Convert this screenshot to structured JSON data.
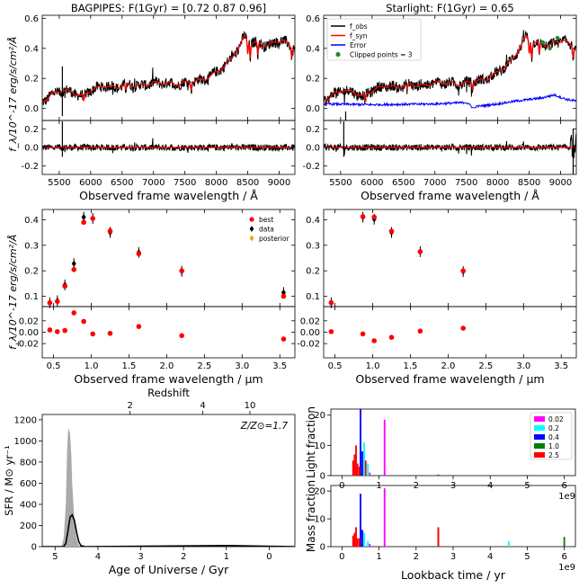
{
  "chart_data": [
    {
      "type": "line",
      "id": "bagpipes_spec",
      "title": "BAGPIPES: F(1Gyr) = [0.72 0.87 0.96]",
      "ylabel": "f_λ/10^-17 erg/s/cm²/Å",
      "xlabel": "Observed frame wavelength / Å",
      "xlim": [
        5230,
        9250
      ],
      "ylim": [
        -0.08,
        0.62
      ],
      "xticks": [
        5500,
        6000,
        6500,
        7000,
        7500,
        8000,
        8500,
        9000
      ],
      "yticks": [
        0.0,
        0.2,
        0.4,
        0.6
      ],
      "series": [
        {
          "name": "f_obs",
          "color": "#000000",
          "x": [
            5250,
            5400,
            5550,
            5700,
            5850,
            6000,
            6200,
            6400,
            6600,
            6800,
            7000,
            7200,
            7400,
            7600,
            7800,
            8000,
            8200,
            8350,
            8450,
            8550,
            8650,
            8750,
            8900,
            9050,
            9200
          ],
          "y": [
            0.05,
            0.1,
            0.12,
            0.11,
            0.08,
            0.12,
            0.15,
            0.14,
            0.16,
            0.15,
            0.17,
            0.17,
            0.16,
            0.18,
            0.19,
            0.24,
            0.31,
            0.4,
            0.48,
            0.44,
            0.44,
            0.42,
            0.43,
            0.46,
            0.4
          ]
        },
        {
          "name": "f_syn",
          "color": "#ff0000",
          "x": [
            5250,
            5400,
            5550,
            5700,
            5850,
            6000,
            6200,
            6400,
            6600,
            6800,
            7000,
            7200,
            7400,
            7600,
            7800,
            8000,
            8200,
            8350,
            8450,
            8550,
            8650,
            8750,
            8900,
            9050,
            9200
          ],
          "y": [
            0.05,
            0.1,
            0.12,
            0.11,
            0.08,
            0.12,
            0.15,
            0.14,
            0.16,
            0.15,
            0.17,
            0.17,
            0.16,
            0.18,
            0.19,
            0.24,
            0.31,
            0.4,
            0.48,
            0.44,
            0.44,
            0.42,
            0.43,
            0.46,
            0.4
          ]
        }
      ]
    },
    {
      "type": "line",
      "id": "bagpipes_resid",
      "xlim": [
        5230,
        9250
      ],
      "ylim": [
        -0.29,
        0.29
      ],
      "yticks": [
        -0.2,
        0.0,
        0.2
      ],
      "series": [
        {
          "name": "residual",
          "color": "#000000",
          "x": [
            5250,
            9250
          ],
          "y": [
            0,
            0
          ]
        },
        {
          "name": "zero",
          "color": "#ff0000",
          "x": [
            5250,
            9250
          ],
          "y": [
            0,
            0
          ]
        }
      ]
    },
    {
      "type": "line",
      "id": "starlight_spec",
      "title": "Starlight: F(1Gyr) = 0.65",
      "xlabel": "Observed frame wavelength / Å",
      "xlim": [
        5230,
        9250
      ],
      "ylim": [
        -0.08,
        0.62
      ],
      "xticks": [
        5500,
        6000,
        6500,
        7000,
        7500,
        8000,
        8500,
        9000
      ],
      "yticks": [
        0.0,
        0.2,
        0.4,
        0.6
      ],
      "legend": {
        "placement": "top-left",
        "entries": [
          {
            "label": "f_obs",
            "color": "#000000",
            "marker": "line"
          },
          {
            "label": "f_syn",
            "color": "#ff0000",
            "marker": "line"
          },
          {
            "label": "Error",
            "color": "#0000ff",
            "marker": "line"
          },
          {
            "label": "Clipped points = 3",
            "color": "#228b22",
            "marker": "dot"
          }
        ]
      },
      "series": [
        {
          "name": "f_obs",
          "color": "#000000",
          "x": [
            5250,
            5400,
            5550,
            5700,
            5850,
            6000,
            6200,
            6400,
            6600,
            6800,
            7000,
            7200,
            7400,
            7600,
            7800,
            8000,
            8200,
            8350,
            8450,
            8550,
            8650,
            8750,
            8900,
            9050,
            9200
          ],
          "y": [
            0.05,
            0.1,
            0.12,
            0.11,
            0.08,
            0.12,
            0.15,
            0.14,
            0.16,
            0.15,
            0.17,
            0.17,
            0.16,
            0.18,
            0.19,
            0.24,
            0.31,
            0.4,
            0.48,
            0.44,
            0.44,
            0.42,
            0.43,
            0.46,
            0.4
          ]
        },
        {
          "name": "f_syn",
          "color": "#ff0000",
          "x": [
            5250,
            5400,
            5550,
            5700,
            5850,
            6000,
            6200,
            6400,
            6600,
            6800,
            7000,
            7200,
            7400,
            7600,
            7800,
            8000,
            8200,
            8350,
            8450,
            8550,
            8650,
            8750,
            8900,
            9050,
            9200
          ],
          "y": [
            0.05,
            0.1,
            0.12,
            0.11,
            0.08,
            0.12,
            0.15,
            0.14,
            0.16,
            0.15,
            0.17,
            0.17,
            0.16,
            0.18,
            0.19,
            0.24,
            0.31,
            0.4,
            0.48,
            0.44,
            0.44,
            0.42,
            0.43,
            0.46,
            0.4
          ]
        },
        {
          "name": "Error",
          "color": "#0000ff",
          "x": [
            5250,
            6000,
            7000,
            7500,
            7600,
            8000,
            8300,
            8500,
            8700,
            8900,
            9100,
            9250
          ],
          "y": [
            0.03,
            0.025,
            0.03,
            0.04,
            0.01,
            0.03,
            0.05,
            0.06,
            0.07,
            0.09,
            0.06,
            0.05
          ]
        },
        {
          "name": "clipped",
          "color": "#228b22",
          "x": [
            8720,
            8830,
            8950
          ],
          "y": [
            0.44,
            0.4,
            0.47
          ]
        }
      ]
    },
    {
      "type": "line",
      "id": "starlight_resid",
      "xlim": [
        5230,
        9250
      ],
      "ylim": [
        -0.29,
        0.29
      ],
      "yticks": [
        -0.2,
        0.0,
        0.2
      ],
      "series": [
        {
          "name": "residual",
          "color": "#000000",
          "x": [
            5250,
            9250
          ],
          "y": [
            0,
            0
          ]
        },
        {
          "name": "zero",
          "color": "#ff0000",
          "x": [
            5250,
            9250
          ],
          "y": [
            0,
            0
          ]
        }
      ]
    },
    {
      "type": "scatter",
      "id": "bagpipes_phot",
      "ylabel": "f_λ/10^-17 erg/s/cm²/Å",
      "xlim": [
        0.35,
        3.7
      ],
      "ylim": [
        0.06,
        0.44
      ],
      "yticks": [
        0.1,
        0.2,
        0.3,
        0.4
      ],
      "legend": {
        "placement": "top-right",
        "entries": [
          {
            "label": "best",
            "color": "#ff0000",
            "marker": "dot"
          },
          {
            "label": "data",
            "color": "#000000",
            "marker": "diamond"
          },
          {
            "label": "posterior",
            "color": "#ff9900",
            "marker": "diamond"
          }
        ]
      },
      "series": [
        {
          "name": "posterior",
          "color": "#ff9900",
          "x": [
            0.45,
            0.55,
            0.65,
            0.77,
            0.9,
            1.02,
            1.25,
            1.63,
            2.2,
            3.55
          ],
          "y": [
            0.075,
            0.083,
            0.145,
            0.205,
            0.41,
            0.405,
            0.36,
            0.272,
            0.202,
            0.108
          ]
        },
        {
          "name": "data",
          "color": "#000000",
          "x": [
            0.45,
            0.55,
            0.65,
            0.77,
            0.9,
            1.02,
            1.25,
            1.63,
            2.2,
            3.55
          ],
          "y": [
            0.075,
            0.083,
            0.145,
            0.228,
            0.41,
            0.405,
            0.35,
            0.272,
            0.198,
            0.115
          ]
        },
        {
          "name": "best",
          "color": "#ff0000",
          "x": [
            0.45,
            0.55,
            0.65,
            0.77,
            0.9,
            1.02,
            1.25,
            1.63,
            2.2,
            3.55
          ],
          "y": [
            0.075,
            0.08,
            0.14,
            0.205,
            0.39,
            0.405,
            0.355,
            0.267,
            0.2,
            0.1
          ]
        }
      ]
    },
    {
      "type": "scatter",
      "id": "bagpipes_phot_resid",
      "xlabel": "Observed frame wavelength / μm",
      "xlim": [
        0.35,
        3.7
      ],
      "ylim": [
        -0.045,
        0.045
      ],
      "xticks": [
        0.5,
        1.0,
        1.5,
        2.0,
        2.5,
        3.0,
        3.5
      ],
      "yticks": [
        -0.02,
        0.0,
        0.02
      ],
      "series": [
        {
          "name": "best",
          "color": "#ff0000",
          "x": [
            0.45,
            0.55,
            0.65,
            0.77,
            0.9,
            1.02,
            1.25,
            1.63,
            2.2,
            3.55
          ],
          "y": [
            0.004,
            0.001,
            0.003,
            0.034,
            0.019,
            -0.003,
            -0.002,
            0.01,
            -0.006,
            -0.012
          ]
        }
      ]
    },
    {
      "type": "scatter",
      "id": "starlight_phot",
      "xlim": [
        0.35,
        3.7
      ],
      "ylim": [
        0.06,
        0.44
      ],
      "yticks": [
        0.1,
        0.2,
        0.3,
        0.4
      ],
      "series": [
        {
          "name": "data",
          "color": "#000000",
          "x": [
            0.45,
            0.87,
            1.02,
            1.25,
            1.63,
            2.2
          ],
          "y": [
            0.075,
            0.41,
            0.402,
            0.35,
            0.275,
            0.197
          ]
        },
        {
          "name": "best",
          "color": "#ff0000",
          "x": [
            0.45,
            0.87,
            1.02,
            1.25,
            1.63,
            2.2
          ],
          "y": [
            0.075,
            0.412,
            0.41,
            0.355,
            0.275,
            0.2
          ]
        }
      ]
    },
    {
      "type": "scatter",
      "id": "starlight_phot_resid",
      "xlabel": "Observed frame wavelength / μm",
      "xlim": [
        0.35,
        3.7
      ],
      "ylim": [
        -0.045,
        0.045
      ],
      "xticks": [
        0.5,
        1.0,
        1.5,
        2.0,
        2.5,
        3.0,
        3.5
      ],
      "yticks": [
        -0.02,
        0.0,
        0.02
      ],
      "series": [
        {
          "name": "best",
          "color": "#ff0000",
          "x": [
            0.45,
            0.87,
            1.02,
            1.25,
            1.63,
            2.2
          ],
          "y": [
            0.001,
            -0.003,
            -0.015,
            -0.009,
            0.002,
            0.007
          ]
        }
      ]
    },
    {
      "type": "area",
      "id": "sfh",
      "xlabel": "Age of Universe / Gyr",
      "ylabel": "SFR / M⊙ yr⁻¹",
      "x2label": "Redshift",
      "annotation": "Z/Z⊙=1.7",
      "xlim": [
        5.3,
        -0.6
      ],
      "ylim": [
        0,
        1250
      ],
      "xticks": [
        5,
        4,
        3,
        2,
        1,
        0
      ],
      "yticks": [
        0,
        200,
        400,
        600,
        800,
        1000,
        1200
      ],
      "x2ticks": [
        {
          "label": "2",
          "age": 3.25
        },
        {
          "label": "4",
          "age": 1.55
        },
        {
          "label": "10",
          "age": 0.45
        }
      ],
      "series": [
        {
          "name": "posterior_range",
          "color": "#aaaaaa",
          "x": [
            4.85,
            4.8,
            4.75,
            4.72,
            4.7,
            4.68,
            4.65,
            4.62,
            4.6,
            4.55,
            4.5,
            4.45,
            4.4
          ],
          "y": [
            0,
            80,
            400,
            900,
            1080,
            1120,
            1060,
            850,
            600,
            250,
            80,
            10,
            0
          ]
        },
        {
          "name": "median",
          "color": "#000000",
          "x": [
            5.3,
            4.8,
            4.75,
            4.7,
            4.65,
            4.6,
            4.55,
            4.5,
            4.45,
            4.4,
            4.3,
            3.0,
            1.0,
            -0.6
          ],
          "y": [
            0,
            0,
            30,
            150,
            280,
            300,
            250,
            140,
            50,
            10,
            0,
            3,
            10,
            0
          ]
        }
      ]
    },
    {
      "type": "bar",
      "id": "light_fraction",
      "ylabel": "Light fraction",
      "xlim": [
        -0.3,
        6.3
      ],
      "ylim": [
        0,
        22
      ],
      "xticks": [
        0,
        1,
        2,
        3,
        4,
        5,
        6
      ],
      "yticks": [
        0,
        10,
        20
      ],
      "offset_label": "1e9",
      "legend": {
        "placement": "top-right",
        "entries": [
          {
            "label": "0.02",
            "color": "#ff00ff"
          },
          {
            "label": "0.2",
            "color": "#00ffff"
          },
          {
            "label": "0.4",
            "color": "#0000ff"
          },
          {
            "label": "1.0",
            "color": "#008000"
          },
          {
            "label": "2.5",
            "color": "#ff0000"
          }
        ]
      },
      "series": [
        {
          "name": "0.02",
          "color": "#ff00ff",
          "x": [
            0.75,
            1.15
          ],
          "y": [
            1.0,
            18.5
          ]
        },
        {
          "name": "0.2",
          "color": "#00ffff",
          "x": [
            0.5,
            0.6,
            0.7
          ],
          "y": [
            16.0,
            11.0,
            4.0
          ]
        },
        {
          "name": "0.4",
          "color": "#0000ff",
          "x": [
            0.5,
            0.55
          ],
          "y": [
            25.0,
            8.0
          ]
        },
        {
          "name": "1.0",
          "color": "#008000",
          "x": [
            0.47,
            2.6
          ],
          "y": [
            0.5,
            0.4
          ]
        },
        {
          "name": "2.5",
          "color": "#ff0000",
          "x": [
            0.3,
            0.34,
            0.38,
            0.42,
            0.47,
            0.64
          ],
          "y": [
            5.0,
            7.0,
            10.0,
            4.0,
            3.0,
            5.0
          ]
        }
      ]
    },
    {
      "type": "bar",
      "id": "mass_fraction",
      "ylabel": "Mass fraction",
      "xlabel": "Lookback time / yr",
      "xlim": [
        -0.3,
        6.3
      ],
      "ylim": [
        0,
        22
      ],
      "xticks": [
        0,
        1,
        2,
        3,
        4,
        5,
        6
      ],
      "yticks": [
        0,
        10,
        20
      ],
      "offset_label": "1e9",
      "series": [
        {
          "name": "0.02",
          "color": "#ff00ff",
          "x": [
            0.75,
            1.15
          ],
          "y": [
            1.0,
            21.0
          ]
        },
        {
          "name": "0.2",
          "color": "#00ffff",
          "x": [
            0.5,
            0.6,
            0.7,
            4.5
          ],
          "y": [
            10.0,
            5.0,
            2.0,
            2.0
          ]
        },
        {
          "name": "0.4",
          "color": "#0000ff",
          "x": [
            0.5,
            0.55
          ],
          "y": [
            19.0,
            6.0
          ]
        },
        {
          "name": "1.0",
          "color": "#008000",
          "x": [
            2.6,
            6.0
          ],
          "y": [
            6.0,
            3.5
          ]
        },
        {
          "name": "2.5",
          "color": "#ff0000",
          "x": [
            0.3,
            0.34,
            0.38,
            0.42,
            0.47,
            2.6
          ],
          "y": [
            4.0,
            5.0,
            7.0,
            3.0,
            3.0,
            7.0
          ]
        }
      ]
    }
  ]
}
